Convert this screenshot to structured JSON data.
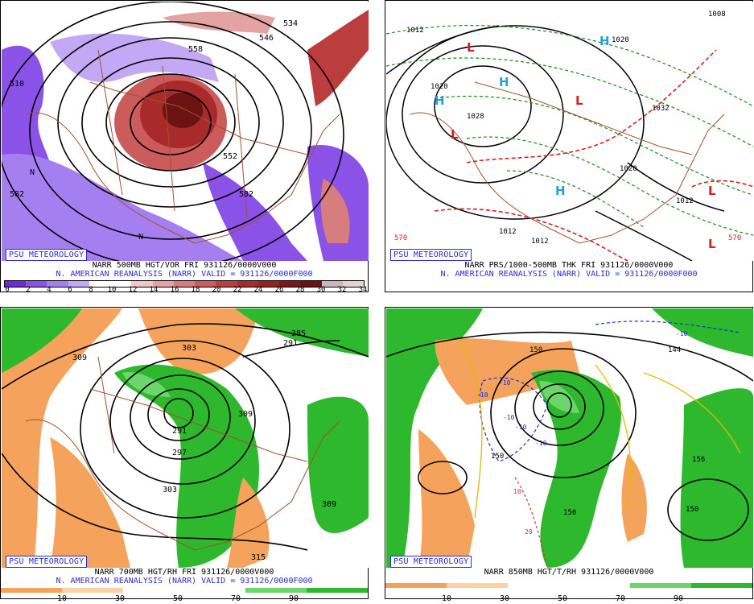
{
  "credit": "PSU METEOROLOGY",
  "panels": [
    {
      "title": "NARR 500MB HGT/VOR FRI 931126/0000V000",
      "subtitle": "N. AMERICAN REANALYSIS (NARR) VALID = 931126/0000F000",
      "colorbar_ticks": [
        "0",
        "2",
        "4",
        "6",
        "8",
        "10",
        "12",
        "14",
        "16",
        "18",
        "20",
        "22",
        "24",
        "26",
        "28",
        "30",
        "32",
        "34"
      ],
      "colorbar_colors": [
        "#6a2bd8",
        "#8a52e6",
        "#a57ff0",
        "#c3a9f5",
        "#ffffff",
        "#ffffff",
        "#f0c8c8",
        "#e4a3a3",
        "#d87d7d",
        "#cc5b5b",
        "#bc3d3d",
        "#a82a2a",
        "#952020",
        "#7d1717",
        "#6b1212",
        "#c9b7b7",
        "#e0d4d4"
      ],
      "contour_labels": [
        "510",
        "546",
        "558",
        "552",
        "582",
        "534",
        "582",
        "N",
        "N"
      ]
    },
    {
      "title": "NARR PRS/1000-500MB THK FRI 931126/0000V000",
      "subtitle": "N. AMERICAN REANALYSIS (NARR) VALID = 931126/0000F000",
      "contour_labels": [
        "1012",
        "1012",
        "1020",
        "1020",
        "1028",
        "1032",
        "1020",
        "1012",
        "1012",
        "570",
        "570",
        "1008"
      ],
      "pressure_centers": [
        "H",
        "H",
        "H",
        "H",
        "L",
        "L",
        "L",
        "L",
        "L"
      ]
    },
    {
      "title": "NARR 700MB HGT/RH FRI 931126/0000V000",
      "subtitle": "N. AMERICAN REANALYSIS (NARR) VALID = 931126/0000F000",
      "colorbar_ticks": [
        "10",
        "30",
        "50",
        "70",
        "90"
      ],
      "contour_labels": [
        "309",
        "303",
        "285",
        "291",
        "297",
        "303",
        "309",
        "309",
        "315",
        "291"
      ]
    },
    {
      "title": "NARR 850MB HGT/T/RH 931126/0000V000",
      "subtitle": "",
      "colorbar_ticks": [
        "10",
        "30",
        "50",
        "70",
        "90"
      ],
      "contour_labels": [
        "150",
        "150",
        "156",
        "150",
        "150",
        "144",
        "-10",
        "-10",
        "-10",
        "-10",
        "-10",
        "-10",
        "10",
        "20",
        "0"
      ]
    }
  ]
}
